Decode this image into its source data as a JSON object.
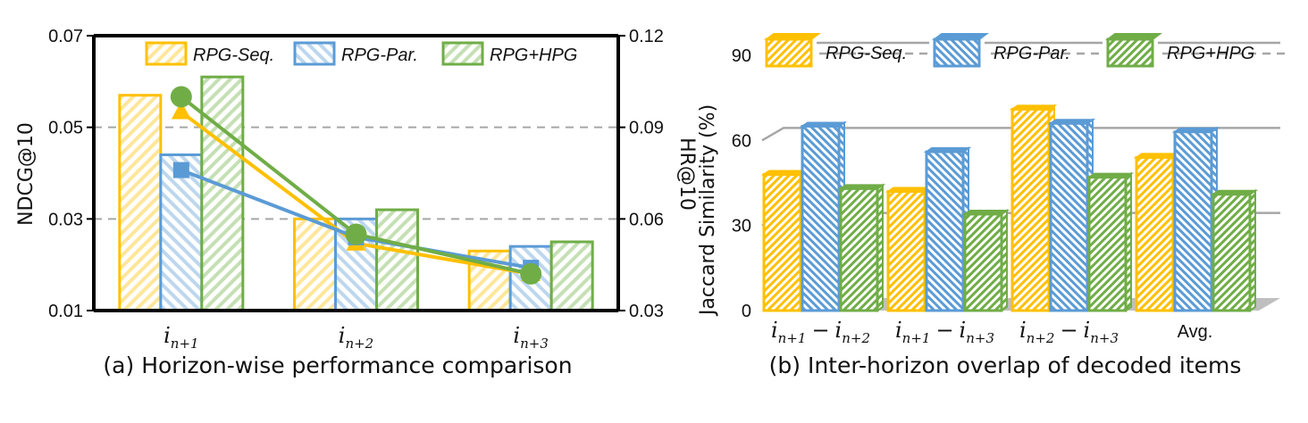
{
  "colors": {
    "seq": "#FFC000",
    "par": "#5B9BD5",
    "hpg": "#70AD47",
    "grid": "#A6A6A6",
    "floor": "#BFBFBF",
    "axis": "#000000"
  },
  "chart_data": [
    {
      "id": "a",
      "type": "bar+line",
      "caption": "(a) Horizon-wise performance comparison",
      "ylabel": "NDCG@10",
      "y2label": "HR@10",
      "categories": [
        {
          "base": "i",
          "sub": "n+1"
        },
        {
          "base": "i",
          "sub": "n+2"
        },
        {
          "base": "i",
          "sub": "n+3"
        }
      ],
      "ylim": [
        0.01,
        0.07
      ],
      "yticks": [
        "0.01",
        "0.03",
        "0.05",
        "0.07"
      ],
      "y2lim": [
        0.03,
        0.12
      ],
      "y2ticks": [
        "0.03",
        "0.06",
        "0.09",
        "0.12"
      ],
      "grid": "horizontal dashed",
      "legend": "top",
      "series": [
        {
          "name": "RPG-Seq.",
          "color_key": "seq",
          "marker": "triangle",
          "ndcg": [
            0.057,
            0.03,
            0.023
          ],
          "hr": [
            0.095,
            0.052,
            0.042
          ]
        },
        {
          "name": "RPG-Par.",
          "color_key": "par",
          "marker": "square",
          "ndcg": [
            0.044,
            0.03,
            0.024
          ],
          "hr": [
            0.076,
            0.054,
            0.044
          ]
        },
        {
          "name": "RPG+HPG",
          "color_key": "hpg",
          "marker": "circle",
          "ndcg": [
            0.061,
            0.032,
            0.025
          ],
          "hr": [
            0.1,
            0.055,
            0.042
          ]
        }
      ]
    },
    {
      "id": "b",
      "type": "bar",
      "caption": "(b) Inter-horizon overlap of decoded items",
      "ylabel": "Jaccard Similarity (%)",
      "categories": [
        {
          "parts": [
            {
              "base": "i",
              "sub": "n+1"
            },
            {
              "op": "−"
            },
            {
              "base": "i",
              "sub": "n+2"
            }
          ]
        },
        {
          "parts": [
            {
              "base": "i",
              "sub": "n+1"
            },
            {
              "op": "−"
            },
            {
              "base": "i",
              "sub": "n+3"
            }
          ]
        },
        {
          "parts": [
            {
              "base": "i",
              "sub": "n+2"
            },
            {
              "op": "−"
            },
            {
              "base": "i",
              "sub": "n+3"
            }
          ]
        },
        {
          "text": "Avg."
        }
      ],
      "ylim": [
        0,
        90
      ],
      "yticks": [
        "0",
        "30",
        "60",
        "90"
      ],
      "grid": "horizontal",
      "legend": "top",
      "style": "3d",
      "series": [
        {
          "name": "RPG-Seq.",
          "color_key": "seq",
          "values": [
            48,
            42,
            71,
            54
          ]
        },
        {
          "name": "RPG-Par.",
          "color_key": "par",
          "values": [
            65,
            56,
            66,
            63
          ]
        },
        {
          "name": "RPG+HPG",
          "color_key": "hpg",
          "values": [
            43,
            34,
            47,
            41
          ]
        }
      ]
    }
  ]
}
